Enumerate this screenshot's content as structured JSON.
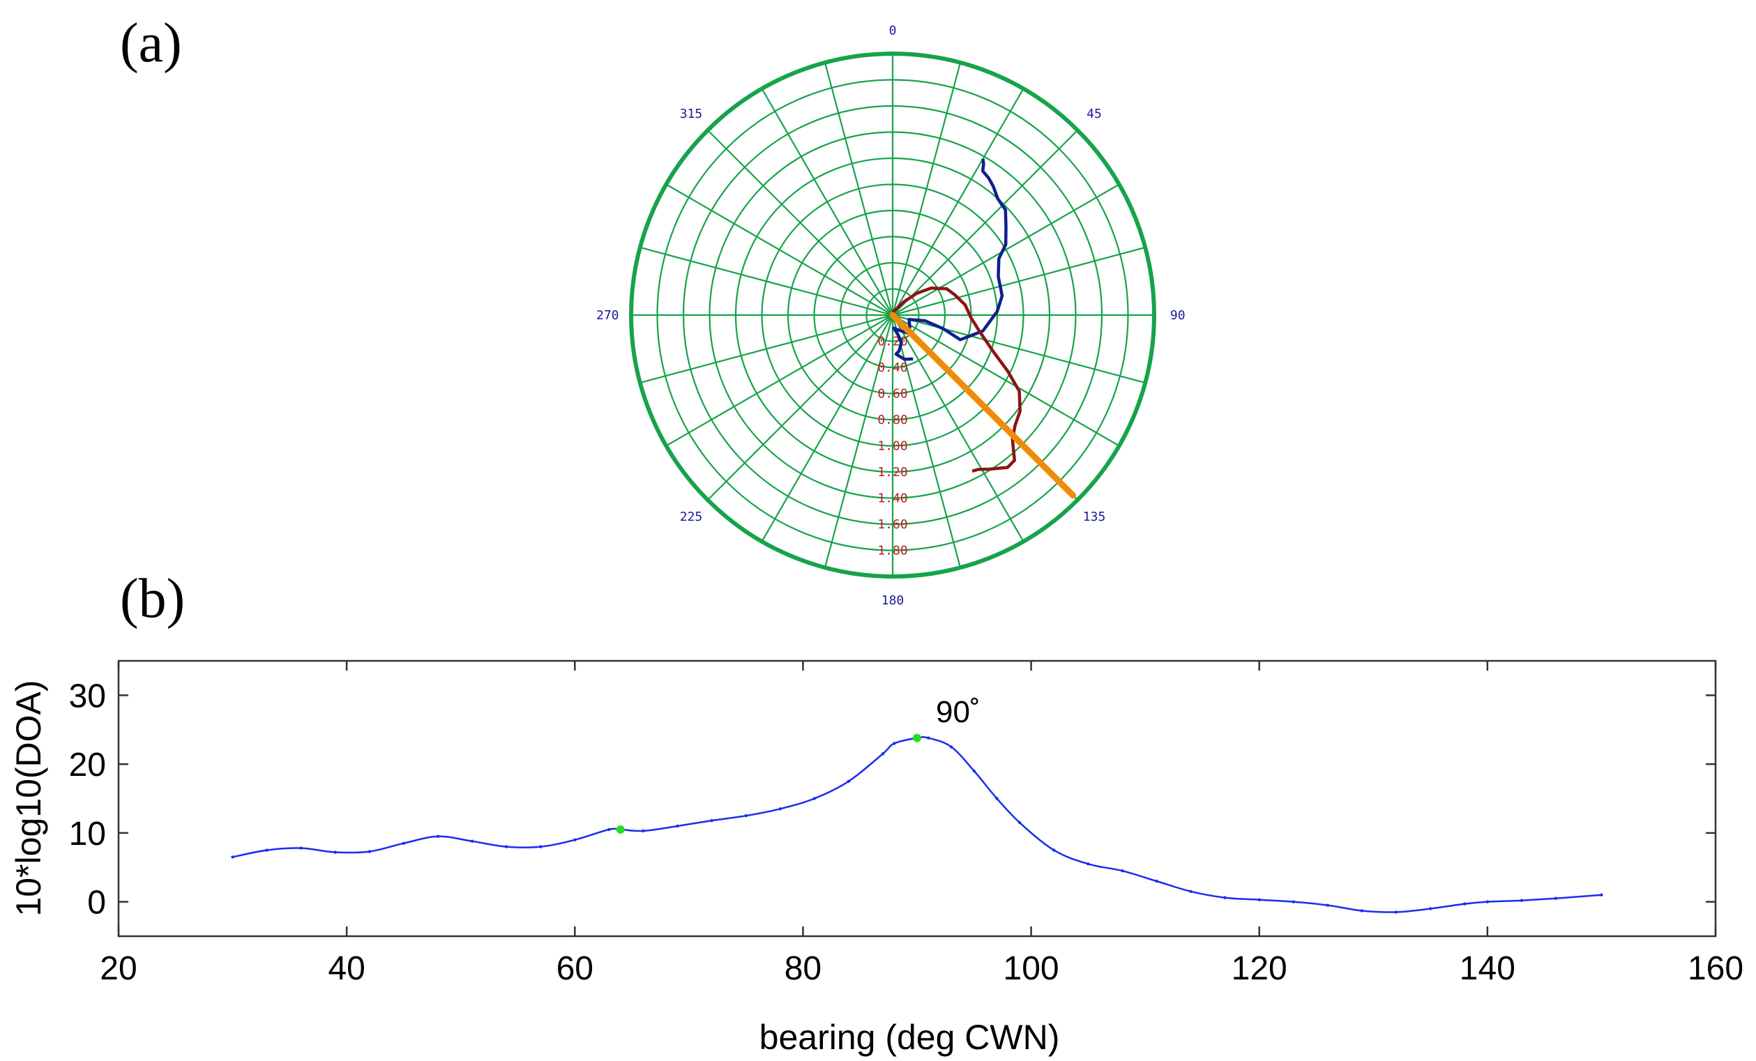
{
  "panels": {
    "a_label": "(a)",
    "b_label": "(b)"
  },
  "chart_data": [
    {
      "type": "polar",
      "angle_ticks": [
        "0",
        "45",
        "90",
        "135",
        "180",
        "225",
        "270",
        "315"
      ],
      "radial_ticks": [
        "0.20",
        "0.40",
        "0.60",
        "0.80",
        "1.00",
        "1.20",
        "1.40",
        "1.60",
        "1.80"
      ],
      "rmax": 2.0,
      "grid": true,
      "colors": {
        "grid": "#16a34a",
        "angle_labels": "#1a1a9a",
        "radial_labels": "#b22222",
        "series_blue": "#0f1f8c",
        "series_red": "#8b1414",
        "bearing_line": "#f08c0a"
      },
      "series": [
        {
          "color_key": "series_blue",
          "points": [
            [
              155,
              0.37
            ],
            [
              165,
              0.35
            ],
            [
              175,
              0.3
            ],
            [
              170,
              0.28
            ],
            [
              162,
              0.22
            ],
            [
              165,
              0.15
            ],
            [
              175,
              0.1
            ],
            [
              160,
              0.12
            ],
            [
              140,
              0.18
            ],
            [
              125,
              0.16
            ],
            [
              105,
              0.13
            ],
            [
              100,
              0.25
            ],
            [
              105,
              0.4
            ],
            [
              110,
              0.55
            ],
            [
              100,
              0.7
            ],
            [
              88,
              0.8
            ],
            [
              80,
              0.85
            ],
            [
              70,
              0.86
            ],
            [
              62,
              0.92
            ],
            [
              58,
              1.02
            ],
            [
              52,
              1.1
            ],
            [
              47,
              1.18
            ],
            [
              42,
              1.2
            ],
            [
              38,
              1.25
            ],
            [
              35,
              1.28
            ],
            [
              32,
              1.3
            ],
            [
              31,
              1.35
            ],
            [
              30,
              1.38
            ]
          ]
        },
        {
          "color_key": "series_red",
          "points": [
            [
              0,
              0.02
            ],
            [
              40,
              0.13
            ],
            [
              48,
              0.25
            ],
            [
              55,
              0.36
            ],
            [
              64,
              0.46
            ],
            [
              72,
              0.5
            ],
            [
              82,
              0.56
            ],
            [
              92,
              0.6
            ],
            [
              101,
              0.68
            ],
            [
              110,
              0.82
            ],
            [
              116,
              0.98
            ],
            [
              121,
              1.13
            ],
            [
              127,
              1.22
            ],
            [
              132,
              1.26
            ],
            [
              136,
              1.32
            ],
            [
              138,
              1.38
            ],
            [
              140,
              1.45
            ],
            [
              143,
              1.46
            ],
            [
              148,
              1.39
            ],
            [
              151,
              1.35
            ],
            [
              153,
              1.34
            ]
          ]
        }
      ],
      "bearing_line": {
        "angle": 135,
        "r0": 0.0,
        "r1": 1.95
      }
    },
    {
      "type": "line",
      "xlabel": "bearing (deg CWN)",
      "ylabel": "10*log10(DOA)",
      "xlim": [
        20,
        160
      ],
      "ylim": [
        -5,
        35
      ],
      "xticks": [
        20,
        40,
        60,
        80,
        100,
        120,
        140,
        160
      ],
      "yticks": [
        0,
        10,
        20,
        30
      ],
      "grid": false,
      "colors": {
        "line": "#1a2cf0",
        "markers": "#22e022"
      },
      "x": [
        30,
        33,
        36,
        39,
        42,
        45,
        48,
        51,
        54,
        57,
        60,
        63,
        64,
        66,
        69,
        72,
        75,
        78,
        81,
        84,
        87,
        88,
        90,
        91,
        93,
        95,
        97,
        99,
        102,
        105,
        108,
        111,
        114,
        117,
        120,
        123,
        126,
        129,
        132,
        135,
        138,
        140,
        143,
        146,
        150
      ],
      "y": [
        6.5,
        7.5,
        7.8,
        7.2,
        7.3,
        8.5,
        9.5,
        8.8,
        8.0,
        8.0,
        9.0,
        10.5,
        10.5,
        10.3,
        11.0,
        11.8,
        12.5,
        13.5,
        15.0,
        17.5,
        21.5,
        23.0,
        23.8,
        23.8,
        22.5,
        19.0,
        15.0,
        11.5,
        7.5,
        5.5,
        4.5,
        3.0,
        1.5,
        0.6,
        0.3,
        0.0,
        -0.5,
        -1.3,
        -1.5,
        -1.0,
        -0.3,
        0.0,
        0.2,
        0.5,
        1.0
      ],
      "markers": [
        [
          64,
          10.5
        ],
        [
          90,
          23.8
        ]
      ],
      "annotation": {
        "x": 90,
        "y": 23.8,
        "text": "90˚"
      }
    }
  ]
}
